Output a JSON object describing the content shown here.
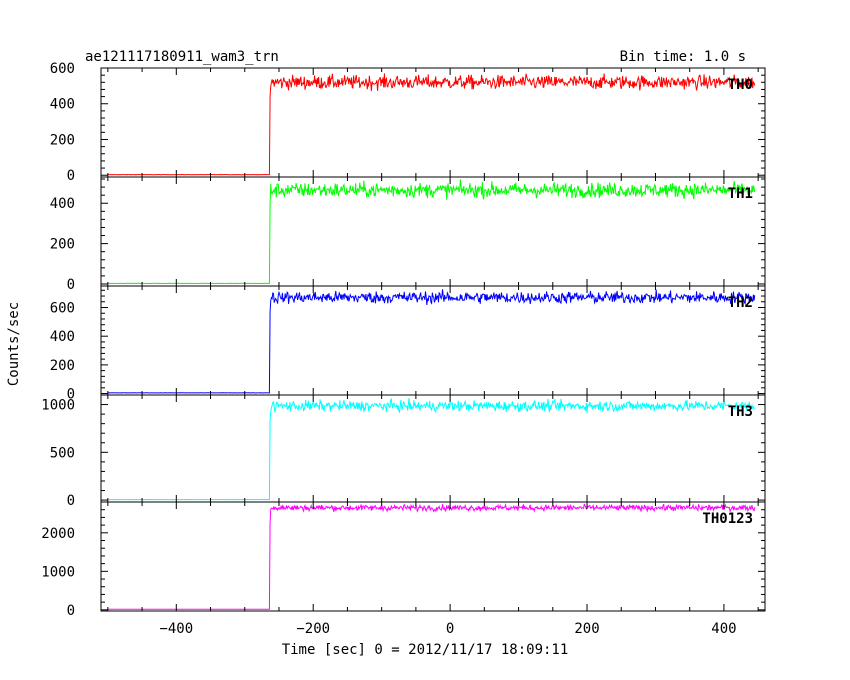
{
  "chart_data": {
    "type": "line",
    "title": "ae121117180911_wam3_trn",
    "bin_time_label": "Bin time: 1.0 s",
    "xlabel": "Time [sec] 0 = 2012/11/17 18:09:11",
    "ylabel": "Counts/sec",
    "xlim": [
      -510,
      460
    ],
    "xticks": [
      -400,
      -200,
      0,
      200,
      400
    ],
    "grid": false,
    "step_time": -263,
    "data_start": -500,
    "data_end": 445,
    "panels": [
      {
        "label": "TH0",
        "color": "#ff0000",
        "ylim": [
          -10,
          600
        ],
        "yticks": [
          0,
          200,
          400,
          600
        ],
        "baseline": 3,
        "level": 520,
        "noise": 28
      },
      {
        "label": "TH1",
        "color": "#00ff00",
        "ylim": [
          -10,
          530
        ],
        "yticks": [
          0,
          200,
          400
        ],
        "baseline": 3,
        "level": 465,
        "noise": 26
      },
      {
        "label": "TH2",
        "color": "#0000ff",
        "ylim": [
          -10,
          750
        ],
        "yticks": [
          0,
          200,
          400,
          600
        ],
        "baseline": 5,
        "level": 670,
        "noise": 30
      },
      {
        "label": "TH3",
        "color": "#00ffff",
        "ylim": [
          -20,
          1100
        ],
        "yticks": [
          0,
          500,
          1000
        ],
        "baseline": 5,
        "level": 985,
        "noise": 40
      },
      {
        "label": "TH0123",
        "color": "#ff00ff",
        "ylim": [
          -30,
          2800
        ],
        "yticks": [
          0,
          1000,
          2000
        ],
        "baseline": 15,
        "level": 2650,
        "noise": 55
      }
    ]
  }
}
